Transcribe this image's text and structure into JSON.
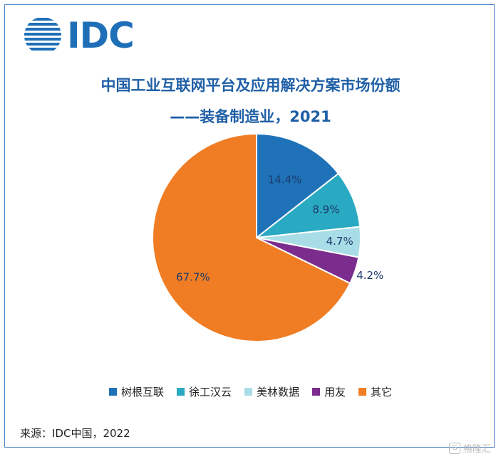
{
  "logo": {
    "text": "IDC"
  },
  "chart_data": {
    "type": "pie",
    "title": "中国工业互联网平台及应用解决方案市场份额",
    "subtitle": "——装备制造业，2021",
    "categories": [
      "树根互联",
      "徐工汉云",
      "美林数据",
      "用友",
      "其它"
    ],
    "values": [
      14.4,
      8.9,
      4.7,
      4.2,
      67.7
    ],
    "labels": [
      "14.4%",
      "8.9%",
      "4.7%",
      "4.2%",
      "67.7%"
    ],
    "colors": [
      "#1f72b8",
      "#2aa9c2",
      "#a8dde7",
      "#7b2d8e",
      "#f07d23"
    ],
    "label_colors": [
      "#1e3a6e",
      "#1e3a6e",
      "#1e3a6e",
      "#1e3a6e",
      "#1e3a6e"
    ],
    "legend_position": "bottom"
  },
  "source": "来源：IDC中国，2022",
  "watermark": {
    "icon": "G",
    "text": "格隆汇"
  }
}
